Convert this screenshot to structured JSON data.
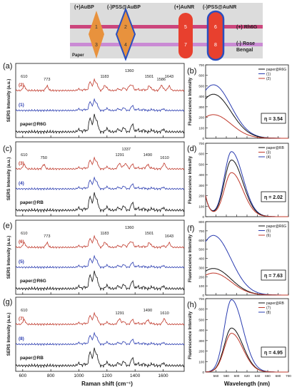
{
  "header": {
    "labels": {
      "au_bp": "(+)AuBP",
      "pss_au_bp": "(-)PSS@AuBP",
      "au_nr": "(+)AuNR",
      "pss_au_nr": "(-)PSS@AuNR",
      "rh6g": "(+) Rh6G",
      "rose": "(-) Rose",
      "bengal": "Bengal",
      "paper": "Paper"
    },
    "spots": [
      "1",
      "2",
      "3",
      "4",
      "5",
      "6",
      "7",
      "8"
    ],
    "colors": {
      "bp_fill": "#e8923d",
      "nr_fill": "#e8402e",
      "shell": "#2a4fbf",
      "rh6g_band": "#c92a6b",
      "rb_band": "#c77bd2",
      "paper": "#dcdcdc"
    }
  },
  "panel_letters": [
    "(a)",
    "(b)",
    "(c)",
    "(d)",
    "(e)",
    "(f)",
    "(g)",
    "(h)"
  ],
  "raman": {
    "ylabel": "SERS Intensity (a.u.)",
    "xlabel": "Raman shift (cm⁻¹)",
    "xticks": [
      "600",
      "800",
      "1000",
      "1200",
      "1400",
      "1600"
    ],
    "xlim": [
      550,
      1750
    ],
    "panels": [
      {
        "id": "a",
        "traces": [
          {
            "label": "(2)",
            "color": "#c0392b"
          },
          {
            "label": "(1)",
            "color": "#2a3cb0"
          },
          {
            "label": "paper@R6G",
            "color": "#111111"
          }
        ],
        "peaks": [
          {
            "x": 610,
            "text": "610"
          },
          {
            "x": 773,
            "text": "773"
          },
          {
            "x": 1183,
            "text": "1183"
          },
          {
            "x": 1360,
            "text": "1360"
          },
          {
            "x": 1501,
            "text": "1501"
          },
          {
            "x": 1586,
            "text": "1586"
          },
          {
            "x": 1643,
            "text": "1643"
          }
        ]
      },
      {
        "id": "c",
        "traces": [
          {
            "label": "(3)",
            "color": "#c0392b"
          },
          {
            "label": "(4)",
            "color": "#2a3cb0"
          },
          {
            "label": "paper@RB",
            "color": "#111111"
          }
        ],
        "peaks": [
          {
            "x": 610,
            "text": "610"
          },
          {
            "x": 750,
            "text": "750"
          },
          {
            "x": 1291,
            "text": "1291"
          },
          {
            "x": 1337,
            "text": "1337"
          },
          {
            "x": 1490,
            "text": "1490"
          },
          {
            "x": 1610,
            "text": "1610"
          }
        ]
      },
      {
        "id": "e",
        "traces": [
          {
            "label": "(6)",
            "color": "#c0392b"
          },
          {
            "label": "(5)",
            "color": "#2a3cb0"
          },
          {
            "label": "paper@R6G",
            "color": "#111111"
          }
        ],
        "peaks": [
          {
            "x": 610,
            "text": "610"
          },
          {
            "x": 773,
            "text": "773"
          },
          {
            "x": 1183,
            "text": "1183"
          },
          {
            "x": 1360,
            "text": "1360"
          },
          {
            "x": 1501,
            "text": "1501"
          },
          {
            "x": 1643,
            "text": "1643"
          }
        ]
      },
      {
        "id": "g",
        "traces": [
          {
            "label": "(7)",
            "color": "#c0392b"
          },
          {
            "label": "(8)",
            "color": "#2a3cb0"
          },
          {
            "label": "paper@RB",
            "color": "#111111"
          }
        ],
        "peaks": [
          {
            "x": 610,
            "text": "610"
          },
          {
            "x": 1291,
            "text": "1291"
          },
          {
            "x": 1490,
            "text": "1490"
          },
          {
            "x": 1610,
            "text": "1610"
          }
        ]
      }
    ]
  },
  "fluorescence": {
    "ylabel": "Fluorescence Intensity",
    "xlabel": "Wavelength (nm)",
    "xlim": [
      540,
      700
    ],
    "xticks": [
      560,
      580,
      600,
      620,
      640,
      660,
      680,
      700
    ],
    "panels": [
      {
        "id": "b",
        "ylim": [
          0,
          700
        ],
        "eta": "η = 3.54",
        "legend": [
          {
            "label": "paper@R6G",
            "color": "#111111"
          },
          {
            "label": "(1)",
            "color": "#2a3cb0"
          },
          {
            "label": "(2)",
            "color": "#c0392b"
          }
        ],
        "series": [
          {
            "center": 555,
            "wl": 32,
            "wr": 34,
            "amp": 510,
            "color": "#2a3cb0"
          },
          {
            "center": 555,
            "wl": 32,
            "wr": 34,
            "amp": 420,
            "color": "#111111"
          },
          {
            "center": 555,
            "wl": 32,
            "wr": 34,
            "amp": 225,
            "color": "#c0392b"
          }
        ]
      },
      {
        "id": "d",
        "ylim": [
          0,
          700
        ],
        "eta": "η = 2.02",
        "legend": [
          {
            "label": "paper@RB",
            "color": "#111111"
          },
          {
            "label": "(3)",
            "color": "#c0392b"
          },
          {
            "label": "(4)",
            "color": "#2a3cb0"
          }
        ],
        "series": [
          {
            "center": 590,
            "wl": 14,
            "wr": 22,
            "amp": 620,
            "color": "#2a3cb0",
            "base": 200
          },
          {
            "center": 590,
            "wl": 14,
            "wr": 22,
            "amp": 540,
            "color": "#111111",
            "base": 200
          },
          {
            "center": 590,
            "wl": 14,
            "wr": 22,
            "amp": 420,
            "color": "#c0392b",
            "base": 200
          }
        ]
      },
      {
        "id": "f",
        "ylim": [
          0,
          800
        ],
        "eta": "η = 7.63",
        "legend": [
          {
            "label": "paper@R6G",
            "color": "#111111"
          },
          {
            "label": "(5)",
            "color": "#2a3cb0"
          },
          {
            "label": "(6)",
            "color": "#c0392b"
          }
        ],
        "series": [
          {
            "center": 555,
            "wl": 32,
            "wr": 34,
            "amp": 650,
            "color": "#2a3cb0"
          },
          {
            "center": 555,
            "wl": 32,
            "wr": 34,
            "amp": 290,
            "color": "#111111"
          },
          {
            "center": 555,
            "wl": 32,
            "wr": 34,
            "amp": 240,
            "color": "#c0392b"
          }
        ]
      },
      {
        "id": "h",
        "ylim": [
          0,
          700
        ],
        "eta": "η = 4.95",
        "legend": [
          {
            "label": "paper@RB",
            "color": "#111111"
          },
          {
            "label": "(7)",
            "color": "#c0392b"
          },
          {
            "label": "(8)",
            "color": "#2a3cb0"
          }
        ],
        "series": [
          {
            "center": 590,
            "wl": 14,
            "wr": 22,
            "amp": 690,
            "color": "#2a3cb0",
            "base": 0
          },
          {
            "center": 590,
            "wl": 14,
            "wr": 22,
            "amp": 420,
            "color": "#111111",
            "base": 0
          },
          {
            "center": 590,
            "wl": 14,
            "wr": 22,
            "amp": 370,
            "color": "#c0392b",
            "base": 0
          }
        ]
      }
    ]
  }
}
